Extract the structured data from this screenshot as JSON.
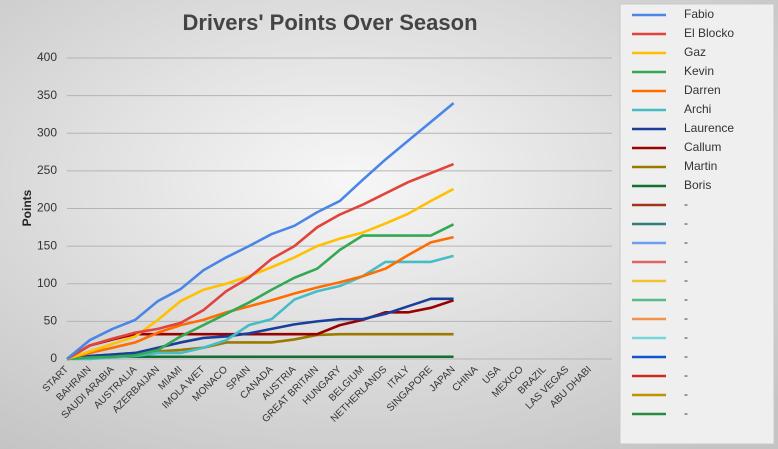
{
  "chart_data": {
    "type": "line",
    "title": "Drivers' Points Over Season",
    "ylabel": "Points",
    "categories": [
      "START",
      "BAHRAIN",
      "SAUDI ARABIA",
      "AUSTRALIA",
      "AZERBAIJAN",
      "MIAMI",
      "IMOLA WET",
      "MONACO",
      "SPAIN",
      "CANADA",
      "AUSTRIA",
      "GREAT BRITAIN",
      "HUNGARY",
      "BELGIUM",
      "NETHERLANDS",
      "ITALY",
      "SINGAPORE",
      "JAPAN",
      "CHINA",
      "USA",
      "MEXICO",
      "BRAZIL",
      "LAS VEGAS",
      "ABU DHABI"
    ],
    "ylim": [
      0,
      400
    ],
    "yticks": [
      0,
      50,
      100,
      150,
      200,
      250,
      300,
      350,
      400
    ],
    "grid": true,
    "legend": "right",
    "series": [
      {
        "name": "Fabio",
        "color": "#4a86e8",
        "values": [
          0,
          25,
          40,
          52,
          77,
          93,
          118,
          135,
          150,
          166,
          177,
          195,
          210,
          238,
          265,
          290,
          315,
          340,
          null,
          null,
          null,
          null,
          null,
          null
        ]
      },
      {
        "name": "El Blocko",
        "color": "#e0443c",
        "values": [
          0,
          18,
          27,
          35,
          40,
          48,
          65,
          90,
          108,
          133,
          150,
          175,
          192,
          205,
          220,
          235,
          247,
          259,
          null,
          null,
          null,
          null,
          null,
          null
        ]
      },
      {
        "name": "Gaz",
        "color": "#ffc000",
        "values": [
          0,
          10,
          20,
          30,
          52,
          77,
          92,
          100,
          110,
          122,
          135,
          150,
          160,
          168,
          180,
          193,
          210,
          226,
          null,
          null,
          null,
          null,
          null,
          null
        ]
      },
      {
        "name": "Kevin",
        "color": "#34a853",
        "values": [
          0,
          2,
          3,
          5,
          12,
          30,
          45,
          60,
          75,
          92,
          108,
          120,
          145,
          164,
          164,
          164,
          164,
          179,
          null,
          null,
          null,
          null,
          null,
          null
        ]
      },
      {
        "name": "Darren",
        "color": "#ff6d01",
        "values": [
          0,
          8,
          15,
          22,
          35,
          45,
          52,
          62,
          70,
          78,
          87,
          95,
          102,
          110,
          120,
          138,
          155,
          162,
          null,
          null,
          null,
          null,
          null,
          null
        ]
      },
      {
        "name": "Archi",
        "color": "#46bdc6",
        "values": [
          0,
          0,
          2,
          4,
          8,
          8,
          15,
          25,
          45,
          53,
          79,
          90,
          97,
          110,
          129,
          129,
          129,
          137,
          null,
          null,
          null,
          null,
          null,
          null
        ]
      },
      {
        "name": "Laurence",
        "color": "#1a3f9a",
        "values": [
          0,
          4,
          6,
          8,
          15,
          22,
          28,
          30,
          34,
          40,
          46,
          50,
          53,
          53,
          60,
          70,
          80,
          80,
          null,
          null,
          null,
          null,
          null,
          null
        ]
      },
      {
        "name": "Callum",
        "color": "#990000",
        "values": [
          0,
          18,
          26,
          33,
          33,
          33,
          33,
          33,
          33,
          33,
          33,
          33,
          45,
          52,
          62,
          62,
          68,
          78,
          null,
          null,
          null,
          null,
          null,
          null
        ]
      },
      {
        "name": "Martin",
        "color": "#9c7a00",
        "values": [
          0,
          4,
          6,
          8,
          10,
          12,
          15,
          22,
          22,
          22,
          26,
          32,
          33,
          33,
          33,
          33,
          33,
          33,
          null,
          null,
          null,
          null,
          null,
          null
        ]
      },
      {
        "name": "Boris",
        "color": "#136f2e",
        "values": [
          0,
          3,
          3,
          3,
          3,
          3,
          3,
          3,
          3,
          3,
          3,
          3,
          3,
          3,
          3,
          3,
          3,
          3,
          null,
          null,
          null,
          null,
          null,
          null
        ]
      },
      {
        "name": "-",
        "color": "#a0341a",
        "values": [
          null,
          null,
          null,
          null,
          null,
          null,
          null,
          null,
          null,
          null,
          null,
          null,
          null,
          null,
          null,
          null,
          null,
          null,
          null,
          null,
          null,
          null,
          null,
          null
        ]
      },
      {
        "name": "-",
        "color": "#2e7d7d",
        "values": [
          null,
          null,
          null,
          null,
          null,
          null,
          null,
          null,
          null,
          null,
          null,
          null,
          null,
          null,
          null,
          null,
          null,
          null,
          null,
          null,
          null,
          null,
          null,
          null
        ]
      },
      {
        "name": "-",
        "color": "#6d9eeb",
        "values": [
          null,
          null,
          null,
          null,
          null,
          null,
          null,
          null,
          null,
          null,
          null,
          null,
          null,
          null,
          null,
          null,
          null,
          null,
          null,
          null,
          null,
          null,
          null,
          null
        ]
      },
      {
        "name": "-",
        "color": "#e06666",
        "values": [
          null,
          null,
          null,
          null,
          null,
          null,
          null,
          null,
          null,
          null,
          null,
          null,
          null,
          null,
          null,
          null,
          null,
          null,
          null,
          null,
          null,
          null,
          null,
          null
        ]
      },
      {
        "name": "-",
        "color": "#f1c232",
        "values": [
          null,
          null,
          null,
          null,
          null,
          null,
          null,
          null,
          null,
          null,
          null,
          null,
          null,
          null,
          null,
          null,
          null,
          null,
          null,
          null,
          null,
          null,
          null,
          null
        ]
      },
      {
        "name": "-",
        "color": "#57bb8a",
        "values": [
          null,
          null,
          null,
          null,
          null,
          null,
          null,
          null,
          null,
          null,
          null,
          null,
          null,
          null,
          null,
          null,
          null,
          null,
          null,
          null,
          null,
          null,
          null,
          null
        ]
      },
      {
        "name": "-",
        "color": "#f6914b",
        "values": [
          null,
          null,
          null,
          null,
          null,
          null,
          null,
          null,
          null,
          null,
          null,
          null,
          null,
          null,
          null,
          null,
          null,
          null,
          null,
          null,
          null,
          null,
          null,
          null
        ]
      },
      {
        "name": "-",
        "color": "#76d7dc",
        "values": [
          null,
          null,
          null,
          null,
          null,
          null,
          null,
          null,
          null,
          null,
          null,
          null,
          null,
          null,
          null,
          null,
          null,
          null,
          null,
          null,
          null,
          null,
          null,
          null
        ]
      },
      {
        "name": "-",
        "color": "#1155cc",
        "values": [
          null,
          null,
          null,
          null,
          null,
          null,
          null,
          null,
          null,
          null,
          null,
          null,
          null,
          null,
          null,
          null,
          null,
          null,
          null,
          null,
          null,
          null,
          null,
          null
        ]
      },
      {
        "name": "-",
        "color": "#cc2a1a",
        "values": [
          null,
          null,
          null,
          null,
          null,
          null,
          null,
          null,
          null,
          null,
          null,
          null,
          null,
          null,
          null,
          null,
          null,
          null,
          null,
          null,
          null,
          null,
          null,
          null
        ]
      },
      {
        "name": "-",
        "color": "#bf9000",
        "values": [
          null,
          null,
          null,
          null,
          null,
          null,
          null,
          null,
          null,
          null,
          null,
          null,
          null,
          null,
          null,
          null,
          null,
          null,
          null,
          null,
          null,
          null,
          null,
          null
        ]
      },
      {
        "name": "-",
        "color": "#2a8a3e",
        "values": [
          null,
          null,
          null,
          null,
          null,
          null,
          null,
          null,
          null,
          null,
          null,
          null,
          null,
          null,
          null,
          null,
          null,
          null,
          null,
          null,
          null,
          null,
          null,
          null
        ]
      }
    ]
  }
}
